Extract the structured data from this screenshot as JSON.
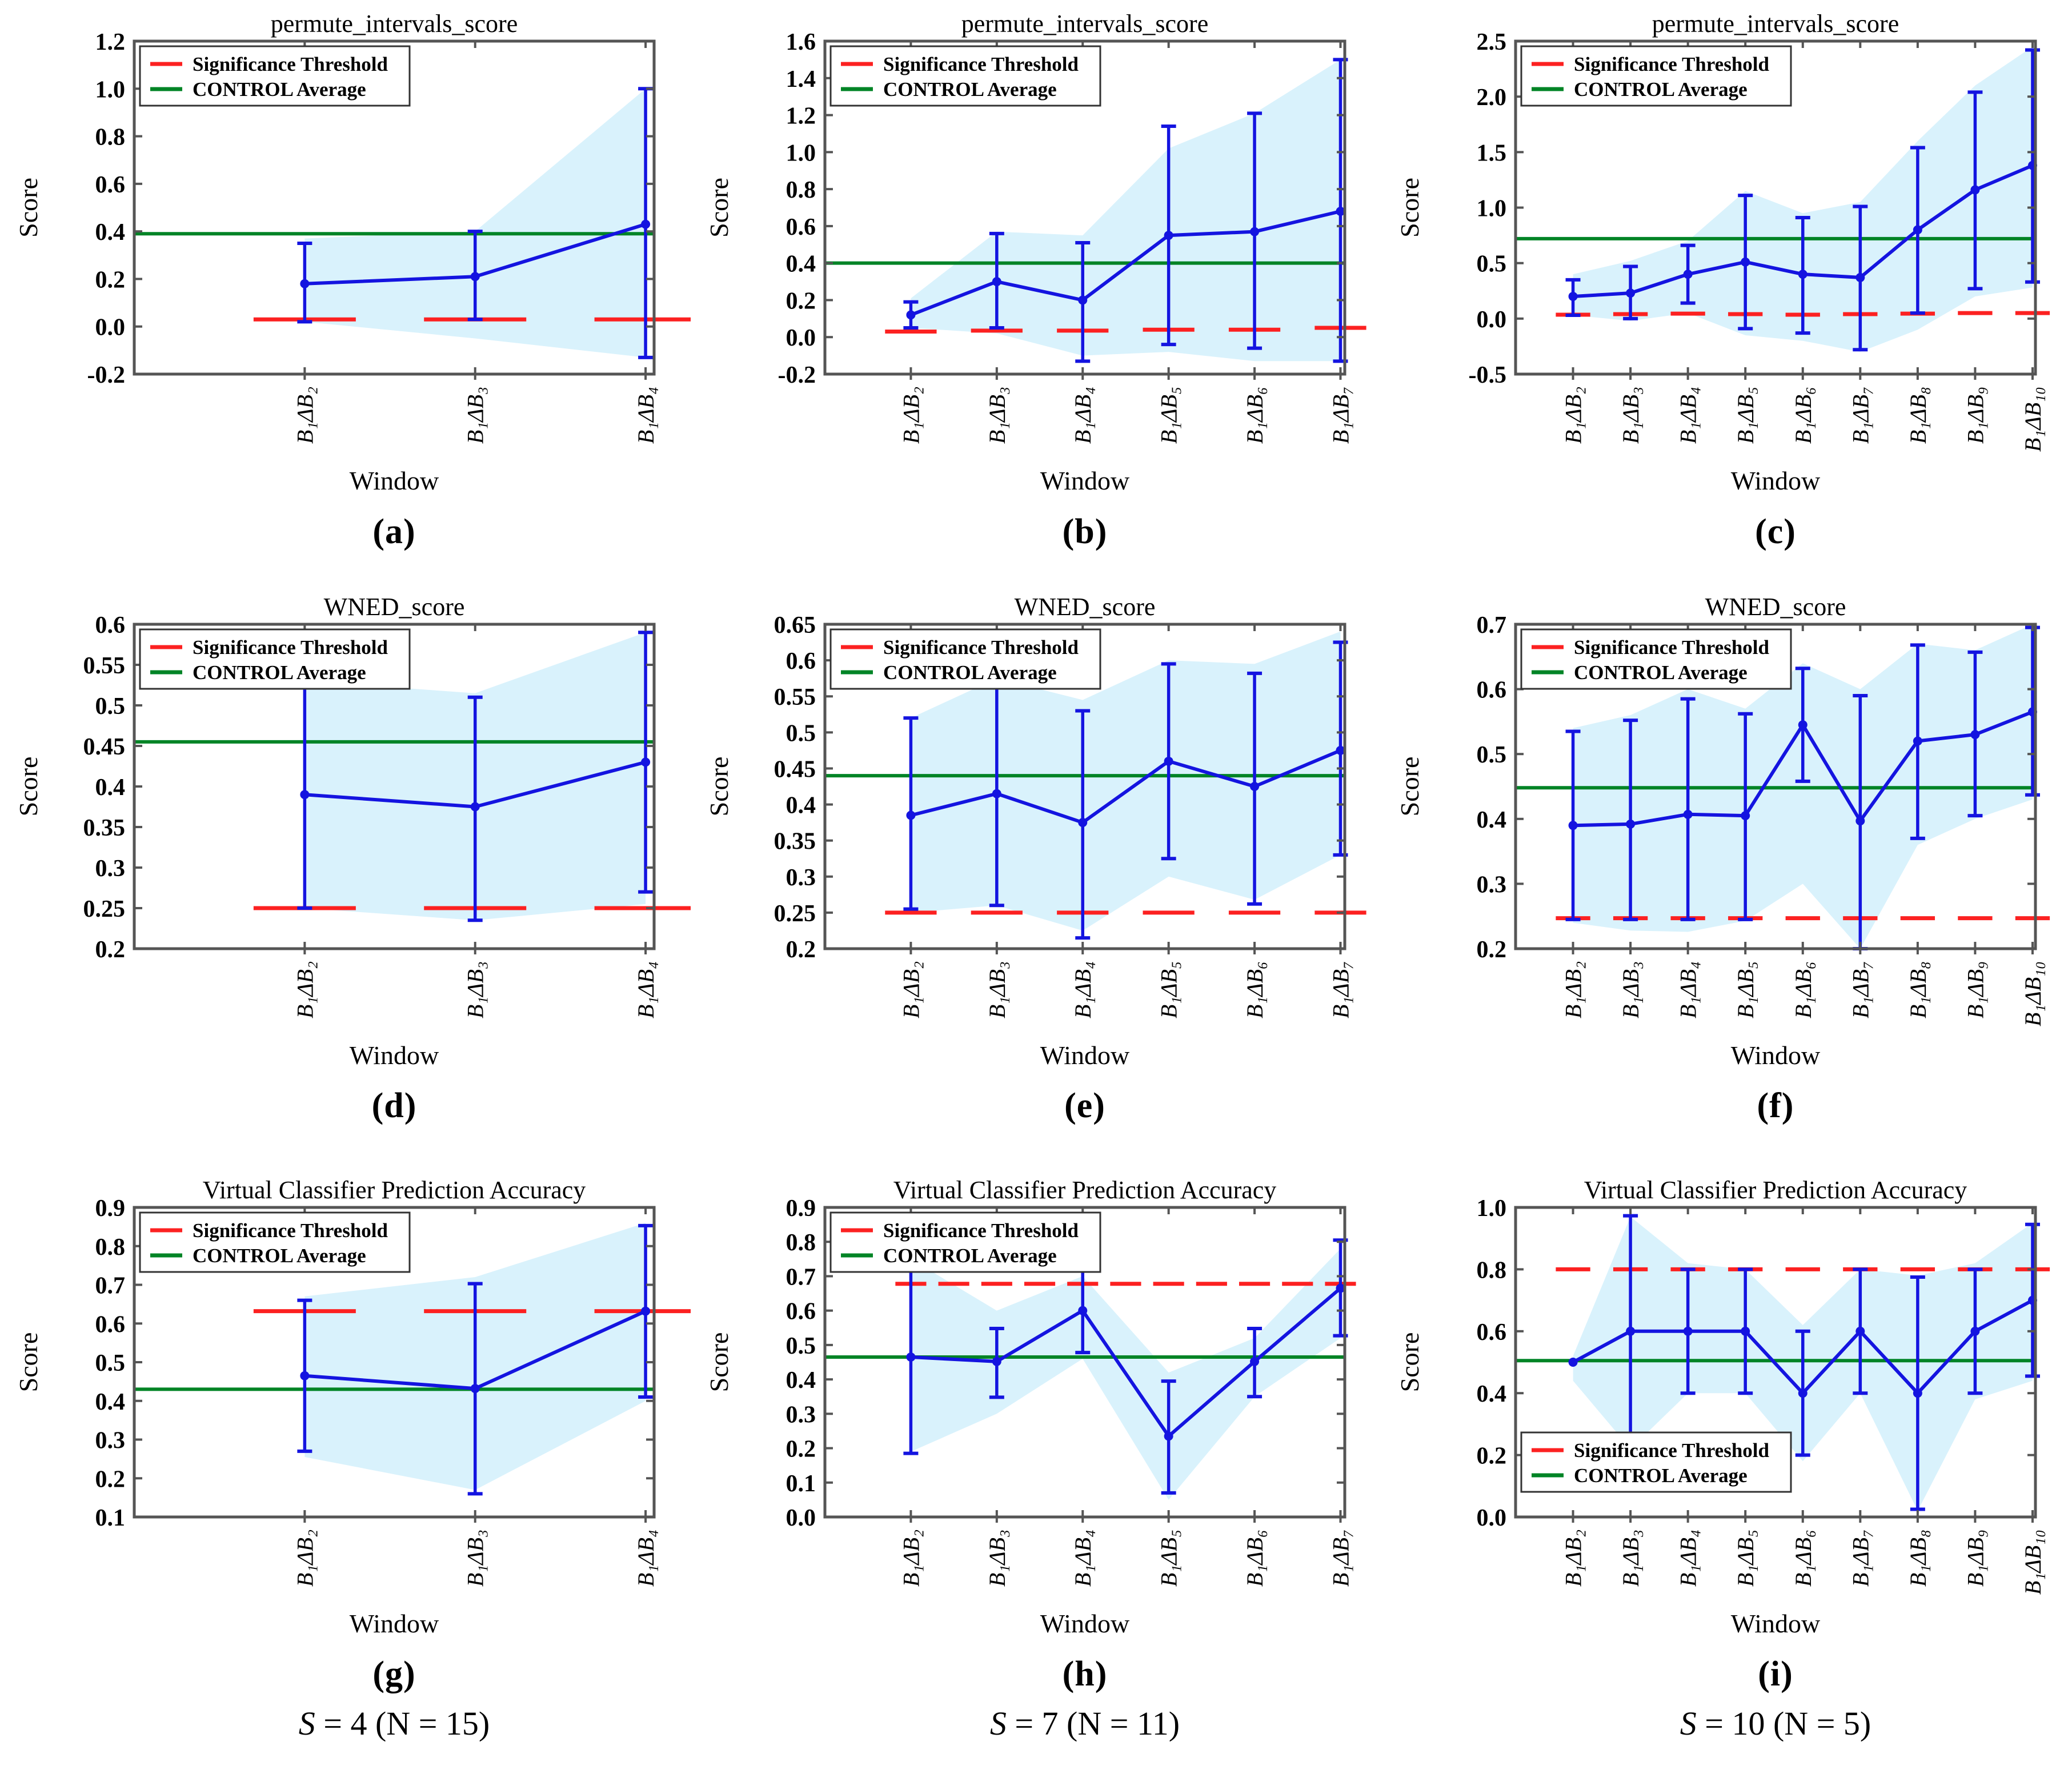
{
  "colors": {
    "series_blue": "#1414e0",
    "control_green": "#008426",
    "threshold_red": "#fc2121",
    "band_fill": "#d9f2fc",
    "spine_gray": "#555555",
    "legend_border": "#333333"
  },
  "legend": {
    "items": [
      {
        "label": "Significance Threshold",
        "color_key": "threshold_red"
      },
      {
        "label": "CONTROL Average",
        "color_key": "control_green"
      }
    ]
  },
  "axis": {
    "xlabel": "Window",
    "ylabel": "Score"
  },
  "chart_data": [
    {
      "id": "a",
      "type": "line",
      "title": "permute_intervals_score",
      "caption": "(a)",
      "legend_position": "top-left",
      "threshold_style": "segments",
      "categories": [
        "B₁ΔB₂",
        "B₁ΔB₃",
        "B₁ΔB₄"
      ],
      "means": [
        0.18,
        0.21,
        0.43
      ],
      "err_lo": [
        0.02,
        0.03,
        -0.13
      ],
      "err_hi": [
        0.35,
        0.4,
        1.0
      ],
      "band_lo": [
        0.02,
        -0.05,
        -0.13
      ],
      "band_hi": [
        0.37,
        0.4,
        1.0
      ],
      "threshold": [
        0.03,
        0.03,
        0.03
      ],
      "control_average": 0.39,
      "ylim": [
        -0.2,
        1.2
      ],
      "yticks": [
        -0.2,
        0.0,
        0.2,
        0.4,
        0.6,
        0.8,
        1.0,
        1.2
      ],
      "ytick_labels": [
        "-0.2",
        "0.0",
        "0.2",
        "0.4",
        "0.6",
        "0.8",
        "1.0",
        "1.2"
      ]
    },
    {
      "id": "b",
      "type": "line",
      "title": "permute_intervals_score",
      "caption": "(b)",
      "legend_position": "top-left",
      "threshold_style": "segments",
      "categories": [
        "B₁ΔB₂",
        "B₁ΔB₃",
        "B₁ΔB₄",
        "B₁ΔB₅",
        "B₁ΔB₆",
        "B₁ΔB₇"
      ],
      "means": [
        0.12,
        0.3,
        0.2,
        0.55,
        0.57,
        0.68
      ],
      "err_lo": [
        0.05,
        0.05,
        -0.13,
        -0.04,
        -0.06,
        -0.13
      ],
      "err_hi": [
        0.19,
        0.56,
        0.51,
        1.14,
        1.21,
        1.5
      ],
      "band_lo": [
        0.05,
        0.02,
        -0.1,
        -0.08,
        -0.13,
        -0.13
      ],
      "band_hi": [
        0.21,
        0.57,
        0.55,
        1.02,
        1.21,
        1.5
      ],
      "threshold": [
        0.03,
        0.035,
        0.035,
        0.04,
        0.04,
        0.05
      ],
      "control_average": 0.4,
      "ylim": [
        -0.2,
        1.6
      ],
      "yticks": [
        -0.2,
        0.0,
        0.2,
        0.4,
        0.6,
        0.8,
        1.0,
        1.2,
        1.4,
        1.6
      ],
      "ytick_labels": [
        "-0.2",
        "0.0",
        "0.2",
        "0.4",
        "0.6",
        "0.8",
        "1.0",
        "1.2",
        "1.4",
        "1.6"
      ]
    },
    {
      "id": "c",
      "type": "line",
      "title": "permute_intervals_score",
      "caption": "(c)",
      "legend_position": "top-left",
      "threshold_style": "segments",
      "categories": [
        "B₁ΔB₂",
        "B₁ΔB₃",
        "B₁ΔB₄",
        "B₁ΔB₅",
        "B₁ΔB₆",
        "B₁ΔB₇",
        "B₁ΔB₈",
        "B₁ΔB₉",
        "B₁ΔB₁₀"
      ],
      "means": [
        0.2,
        0.23,
        0.4,
        0.51,
        0.4,
        0.37,
        0.8,
        1.16,
        1.38
      ],
      "err_lo": [
        0.03,
        0.0,
        0.14,
        -0.09,
        -0.13,
        -0.28,
        0.05,
        0.27,
        0.33
      ],
      "err_hi": [
        0.35,
        0.47,
        0.66,
        1.11,
        0.91,
        1.01,
        1.54,
        2.04,
        2.42
      ],
      "band_lo": [
        0.03,
        -0.02,
        0.05,
        -0.15,
        -0.2,
        -0.3,
        -0.1,
        0.2,
        0.28
      ],
      "band_hi": [
        0.4,
        0.52,
        0.7,
        1.15,
        0.95,
        1.05,
        1.6,
        2.1,
        2.45
      ],
      "threshold": [
        0.035,
        0.04,
        0.045,
        0.04,
        0.035,
        0.04,
        0.045,
        0.05,
        0.05
      ],
      "control_average": 0.72,
      "ylim": [
        -0.5,
        2.5
      ],
      "yticks": [
        -0.5,
        0.0,
        0.5,
        1.0,
        1.5,
        2.0,
        2.5
      ],
      "ytick_labels": [
        "-0.5",
        "0.0",
        "0.5",
        "1.0",
        "1.5",
        "2.0",
        "2.5"
      ]
    },
    {
      "id": "d",
      "type": "line",
      "title": "WNED_score",
      "caption": "(d)",
      "legend_position": "top-left",
      "threshold_style": "segments",
      "categories": [
        "B₁ΔB₂",
        "B₁ΔB₃",
        "B₁ΔB₄"
      ],
      "means": [
        0.39,
        0.375,
        0.43
      ],
      "err_lo": [
        0.25,
        0.235,
        0.27
      ],
      "err_hi": [
        0.53,
        0.51,
        0.59
      ],
      "band_lo": [
        0.25,
        0.235,
        0.255
      ],
      "band_hi": [
        0.53,
        0.515,
        0.59
      ],
      "threshold": [
        0.25,
        0.25,
        0.25
      ],
      "control_average": 0.455,
      "ylim": [
        0.2,
        0.6
      ],
      "yticks": [
        0.2,
        0.25,
        0.3,
        0.35,
        0.4,
        0.45,
        0.5,
        0.55,
        0.6
      ],
      "ytick_labels": [
        "0.2",
        "0.25",
        "0.3",
        "0.35",
        "0.4",
        "0.45",
        "0.5",
        "0.55",
        "0.6"
      ]
    },
    {
      "id": "e",
      "type": "line",
      "title": "WNED_score",
      "caption": "(e)",
      "legend_position": "top-left",
      "threshold_style": "segments",
      "categories": [
        "B₁ΔB₂",
        "B₁ΔB₃",
        "B₁ΔB₄",
        "B₁ΔB₅",
        "B₁ΔB₆",
        "B₁ΔB₇"
      ],
      "means": [
        0.385,
        0.415,
        0.375,
        0.46,
        0.425,
        0.475
      ],
      "err_lo": [
        0.255,
        0.26,
        0.215,
        0.325,
        0.262,
        0.33
      ],
      "err_hi": [
        0.52,
        0.57,
        0.53,
        0.595,
        0.582,
        0.625
      ],
      "band_lo": [
        0.25,
        0.26,
        0.225,
        0.3,
        0.268,
        0.33
      ],
      "band_hi": [
        0.52,
        0.575,
        0.545,
        0.6,
        0.595,
        0.64
      ],
      "threshold": [
        0.25,
        0.25,
        0.25,
        0.25,
        0.25,
        0.25
      ],
      "control_average": 0.44,
      "ylim": [
        0.2,
        0.65
      ],
      "yticks": [
        0.2,
        0.25,
        0.3,
        0.35,
        0.4,
        0.45,
        0.5,
        0.55,
        0.6,
        0.65
      ],
      "ytick_labels": [
        "0.2",
        "0.25",
        "0.3",
        "0.35",
        "0.4",
        "0.45",
        "0.5",
        "0.55",
        "0.6",
        "0.65"
      ]
    },
    {
      "id": "f",
      "type": "line",
      "title": "WNED_score",
      "caption": "(f)",
      "legend_position": "top-left",
      "threshold_style": "segments",
      "categories": [
        "B₁ΔB₂",
        "B₁ΔB₃",
        "B₁ΔB₄",
        "B₁ΔB₅",
        "B₁ΔB₆",
        "B₁ΔB₇",
        "B₁ΔB₈",
        "B₁ΔB₉",
        "B₁ΔB₁₀"
      ],
      "means": [
        0.39,
        0.392,
        0.407,
        0.405,
        0.545,
        0.397,
        0.52,
        0.53,
        0.565
      ],
      "err_lo": [
        0.245,
        0.245,
        0.245,
        0.245,
        0.458,
        0.2,
        0.37,
        0.405,
        0.437
      ],
      "err_hi": [
        0.535,
        0.552,
        0.585,
        0.562,
        0.632,
        0.59,
        0.668,
        0.657,
        0.695
      ],
      "band_lo": [
        0.24,
        0.228,
        0.226,
        0.243,
        0.3,
        0.2,
        0.36,
        0.4,
        0.43
      ],
      "band_hi": [
        0.54,
        0.56,
        0.6,
        0.57,
        0.64,
        0.6,
        0.67,
        0.66,
        0.7
      ],
      "threshold": [
        0.247,
        0.247,
        0.247,
        0.247,
        0.247,
        0.247,
        0.247,
        0.247,
        0.247
      ],
      "control_average": 0.448,
      "ylim": [
        0.2,
        0.7
      ],
      "yticks": [
        0.2,
        0.3,
        0.4,
        0.5,
        0.6,
        0.7
      ],
      "ytick_labels": [
        "0.2",
        "0.3",
        "0.4",
        "0.5",
        "0.6",
        "0.7"
      ]
    },
    {
      "id": "g",
      "type": "line",
      "title": "Virtual Classifier Prediction Accuracy",
      "caption": "(g)",
      "subcaption_s": "S",
      "subcaption_rest": " = 4 (N = 15)",
      "legend_position": "top-left",
      "threshold_style": "segments",
      "categories": [
        "B₁ΔB₂",
        "B₁ΔB₃",
        "B₁ΔB₄"
      ],
      "means": [
        0.465,
        0.432,
        0.632
      ],
      "err_lo": [
        0.27,
        0.16,
        0.41
      ],
      "err_hi": [
        0.66,
        0.703,
        0.853
      ],
      "band_lo": [
        0.255,
        0.17,
        0.4
      ],
      "band_hi": [
        0.67,
        0.72,
        0.86
      ],
      "threshold": [
        0.632,
        0.632,
        0.632
      ],
      "control_average": 0.43,
      "ylim": [
        0.1,
        0.9
      ],
      "yticks": [
        0.1,
        0.2,
        0.3,
        0.4,
        0.5,
        0.6,
        0.7,
        0.8,
        0.9
      ],
      "ytick_labels": [
        "0.1",
        "0.2",
        "0.3",
        "0.4",
        "0.5",
        "0.6",
        "0.7",
        "0.8",
        "0.9"
      ]
    },
    {
      "id": "h",
      "type": "line",
      "title": "Virtual Classifier Prediction Accuracy",
      "caption": "(h)",
      "subcaption_s": "S",
      "subcaption_rest": " = 7 (N = 11)",
      "legend_position": "top-left",
      "threshold_style": "dashed",
      "categories": [
        "B₁ΔB₂",
        "B₁ΔB₃",
        "B₁ΔB₄",
        "B₁ΔB₅",
        "B₁ΔB₆",
        "B₁ΔB₇"
      ],
      "means": [
        0.465,
        0.452,
        0.6,
        0.235,
        0.452,
        0.665
      ],
      "err_lo": [
        0.185,
        0.348,
        0.478,
        0.07,
        0.35,
        0.527
      ],
      "err_hi": [
        0.745,
        0.548,
        0.72,
        0.395,
        0.548,
        0.805
      ],
      "band_lo": [
        0.19,
        0.3,
        0.46,
        0.05,
        0.35,
        0.52
      ],
      "band_hi": [
        0.75,
        0.6,
        0.7,
        0.42,
        0.52,
        0.78
      ],
      "threshold": [
        0.678,
        0.678,
        0.678,
        0.678,
        0.678,
        0.678
      ],
      "control_average": 0.465,
      "ylim": [
        0.0,
        0.9
      ],
      "yticks": [
        0.0,
        0.1,
        0.2,
        0.3,
        0.4,
        0.5,
        0.6,
        0.7,
        0.8,
        0.9
      ],
      "ytick_labels": [
        "0.0",
        "0.1",
        "0.2",
        "0.3",
        "0.4",
        "0.5",
        "0.6",
        "0.7",
        "0.8",
        "0.9"
      ]
    },
    {
      "id": "i",
      "type": "line",
      "title": "Virtual Classifier Prediction Accuracy",
      "caption": "(i)",
      "subcaption_s": "S",
      "subcaption_rest": " = 10 (N = 5)",
      "legend_position": "bottom-left",
      "threshold_style": "segments",
      "categories": [
        "B₁ΔB₂",
        "B₁ΔB₃",
        "B₁ΔB₄",
        "B₁ΔB₅",
        "B₁ΔB₆",
        "B₁ΔB₇",
        "B₁ΔB₈",
        "B₁ΔB₉",
        "B₁ΔB₁₀"
      ],
      "means": [
        0.5,
        0.6,
        0.6,
        0.6,
        0.4,
        0.6,
        0.4,
        0.6,
        0.7
      ],
      "err_lo": [
        0.5,
        0.225,
        0.4,
        0.4,
        0.2,
        0.4,
        0.025,
        0.4,
        0.455
      ],
      "err_hi": [
        0.5,
        0.973,
        0.8,
        0.8,
        0.6,
        0.8,
        0.775,
        0.8,
        0.945
      ],
      "band_lo": [
        0.44,
        0.22,
        0.4,
        0.4,
        0.18,
        0.4,
        0.02,
        0.38,
        0.44
      ],
      "band_hi": [
        0.52,
        0.97,
        0.82,
        0.8,
        0.62,
        0.8,
        0.78,
        0.82,
        0.95
      ],
      "threshold": [
        0.8,
        0.8,
        0.8,
        0.8,
        0.8,
        0.8,
        0.8,
        0.8,
        0.8
      ],
      "control_average": 0.505,
      "ylim": [
        0.0,
        1.0
      ],
      "yticks": [
        0.0,
        0.2,
        0.4,
        0.6,
        0.8,
        1.0
      ],
      "ytick_labels": [
        "0.0",
        "0.2",
        "0.4",
        "0.6",
        "0.8",
        "1.0"
      ]
    }
  ]
}
